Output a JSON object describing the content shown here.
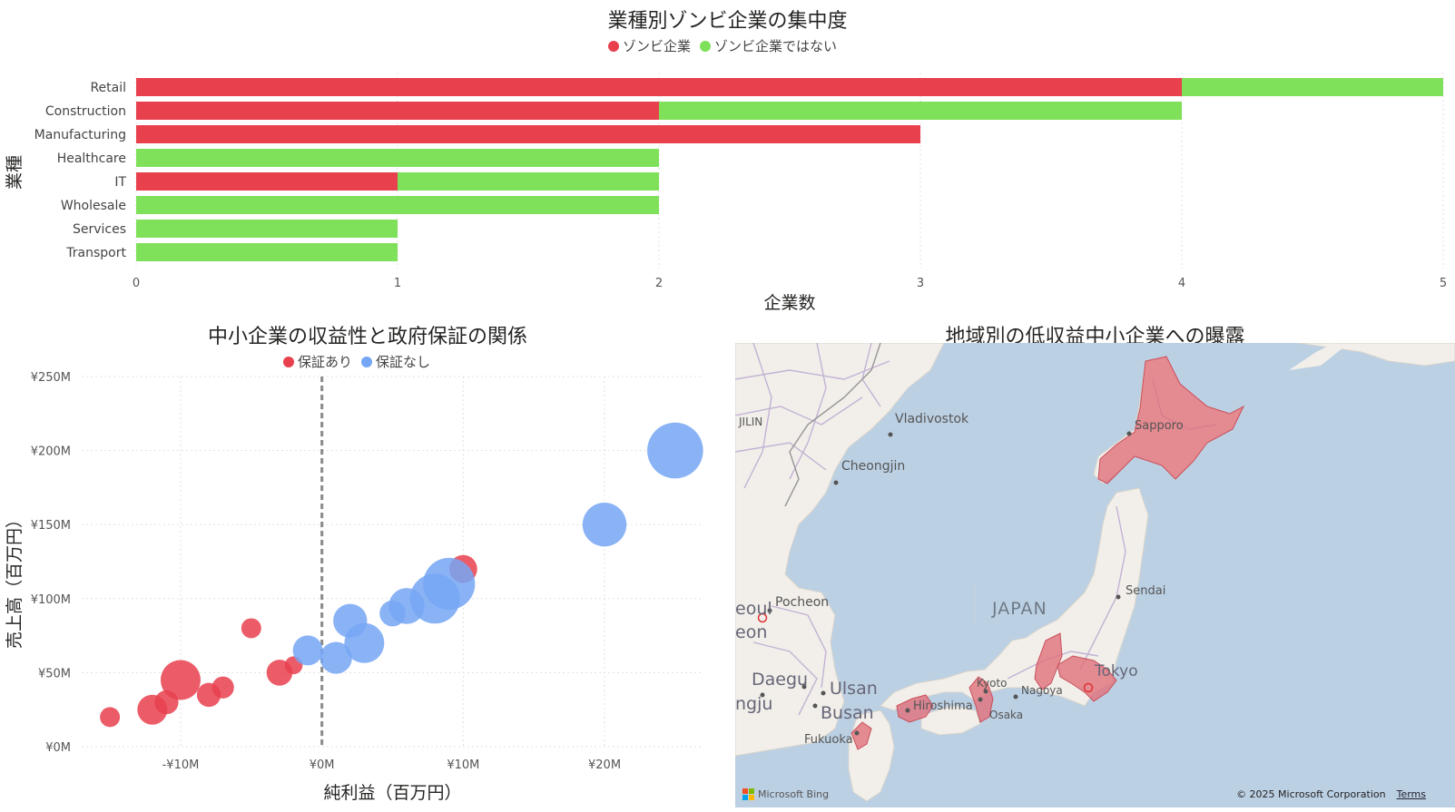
{
  "colors": {
    "zombie": "#E8404D",
    "not_zombie": "#7FE05A",
    "guaranteed": "#E8404D",
    "not_guaranteed": "#75A6F5",
    "map_region": "#E0707A",
    "water": "#BCD0E4",
    "land": "#F2EFEA"
  },
  "chart_data": [
    {
      "type": "bar",
      "orientation": "horizontal",
      "stacked": true,
      "title": "業種別ゾンビ企業の集中度",
      "xlabel": "企業数",
      "ylabel": "業種",
      "categories": [
        "Retail",
        "Construction",
        "Manufacturing",
        "Healthcare",
        "IT",
        "Wholesale",
        "Services",
        "Transport"
      ],
      "series": [
        {
          "name": "ゾンビ企業",
          "values": [
            4,
            2,
            3,
            0,
            1,
            0,
            0,
            0
          ]
        },
        {
          "name": "ゾンビ企業ではない",
          "values": [
            1,
            2,
            0,
            2,
            1,
            2,
            1,
            1
          ]
        }
      ],
      "xlim": [
        0,
        5
      ],
      "xticks": [
        "0",
        "1",
        "2",
        "3",
        "4",
        "5"
      ],
      "legend_position": "top-center",
      "grid": true
    },
    {
      "type": "scatter",
      "bubble": true,
      "title": "中小企業の収益性と政府保証の関係",
      "xlabel": "純利益（百万円）",
      "ylabel": "売上高（百万円）",
      "xlim": [
        -17,
        27
      ],
      "ylim": [
        0,
        250
      ],
      "xticks": [
        {
          "value": -10,
          "label": "-¥10M"
        },
        {
          "value": 0,
          "label": "¥0M"
        },
        {
          "value": 10,
          "label": "¥10M"
        },
        {
          "value": 20,
          "label": "¥20M"
        }
      ],
      "yticks": [
        {
          "value": 0,
          "label": "¥0M"
        },
        {
          "value": 50,
          "label": "¥50M"
        },
        {
          "value": 100,
          "label": "¥100M"
        },
        {
          "value": 150,
          "label": "¥150M"
        },
        {
          "value": 200,
          "label": "¥200M"
        },
        {
          "value": 250,
          "label": "¥250M"
        }
      ],
      "reference_line_x": 0,
      "legend_position": "top-center",
      "grid": true,
      "series": [
        {
          "name": "保証あり",
          "points": [
            {
              "x": -15,
              "y": 20,
              "size": 1.0
            },
            {
              "x": -12,
              "y": 25,
              "size": 1.5
            },
            {
              "x": -11,
              "y": 30,
              "size": 1.2
            },
            {
              "x": -10,
              "y": 45,
              "size": 2.0
            },
            {
              "x": -8,
              "y": 35,
              "size": 1.2
            },
            {
              "x": -7,
              "y": 40,
              "size": 1.1
            },
            {
              "x": -5,
              "y": 80,
              "size": 1.0
            },
            {
              "x": -3,
              "y": 50,
              "size": 1.3
            },
            {
              "x": -2,
              "y": 55,
              "size": 0.9
            },
            {
              "x": 10,
              "y": 120,
              "size": 1.4
            }
          ]
        },
        {
          "name": "保証なし",
          "points": [
            {
              "x": -1,
              "y": 65,
              "size": 1.5
            },
            {
              "x": 1,
              "y": 60,
              "size": 1.6
            },
            {
              "x": 2,
              "y": 85,
              "size": 1.7
            },
            {
              "x": 3,
              "y": 70,
              "size": 2.0
            },
            {
              "x": 5,
              "y": 90,
              "size": 1.3
            },
            {
              "x": 6,
              "y": 95,
              "size": 1.8
            },
            {
              "x": 8,
              "y": 100,
              "size": 2.5
            },
            {
              "x": 9,
              "y": 110,
              "size": 2.6
            },
            {
              "x": 20,
              "y": 150,
              "size": 2.2
            },
            {
              "x": 25,
              "y": 200,
              "size": 2.8
            }
          ]
        }
      ]
    }
  ],
  "map": {
    "title": "地域別の低収益中小企業への曝露",
    "labels": {
      "jilin": "JILIN",
      "vladivostok": "Vladivostok",
      "cheongjin": "Cheongjin",
      "sapporo": "Sapporo",
      "japan": "JAPAN",
      "sendai": "Sendai",
      "pocheon": "Pocheon",
      "seoul": "eoul",
      "incheon": "eon",
      "daegu": "Daegu",
      "ulsan": "Ulsan",
      "busan": "Busan",
      "jeonju": "ngju",
      "fukuoka": "Fukuoka",
      "hiroshima": "Hiroshima",
      "kyoto": "Kyoto",
      "osaka": "Osaka",
      "nagoya": "Nagoya",
      "tokyo": "Tokyo"
    },
    "bing_label": "Microsoft Bing",
    "copyright": "© 2025 Microsoft Corporation",
    "terms": "Terms"
  }
}
